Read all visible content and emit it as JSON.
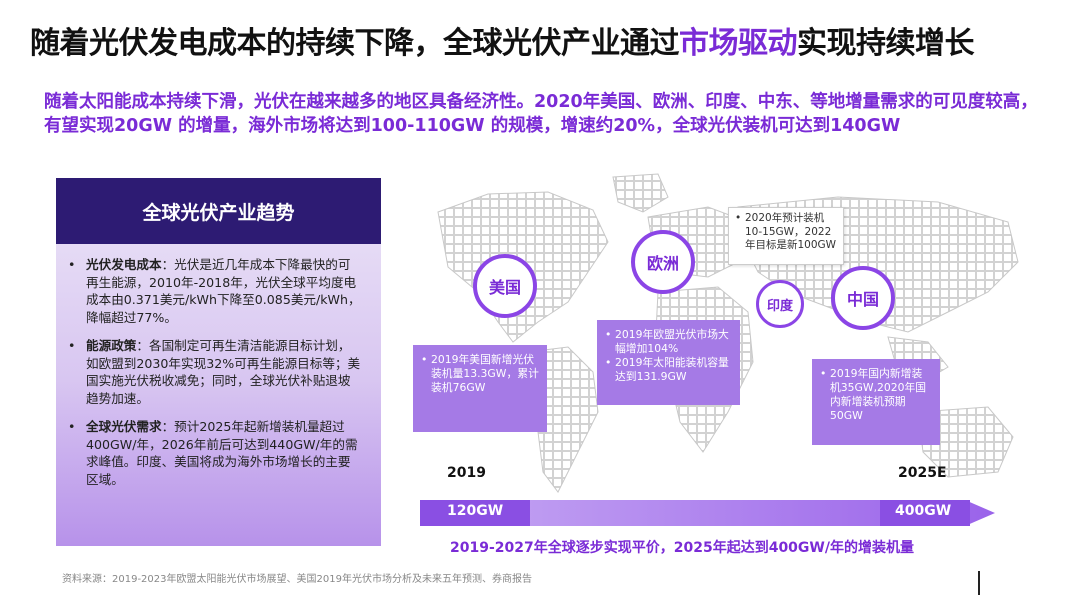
{
  "title": {
    "part1": "随着光伏发电成本的持续下降，全球光伏产业通过",
    "highlight": "市场驱动",
    "part2": "实现持续增长"
  },
  "subtitle": "随着太阳能成本持续下滑，光伏在越来越多的地区具备经济性。2020年美国、欧洲、印度、中东、等地增量需求的可见度较高，有望实现20GW 的增量，海外市场将达到100-110GW 的规模，增速约20%，全球光伏装机可达到140GW",
  "panel": {
    "heading": "全球光伏产业趋势",
    "items": [
      {
        "label": "光伏发电成本",
        "text": "：光伏是近几年成本下降最快的可再生能源，2010年-2018年，光伏全球平均度电成本由0.371美元/kWh下降至0.085美元/kWh，降幅超过77%。"
      },
      {
        "label": "能源政策",
        "text": "：各国制定可再生清洁能源目标计划，如欧盟到2030年实现32%可再生能源目标等；美国实施光伏税收减免；同时，全球光伏补贴退坡趋势加速。"
      },
      {
        "label": "全球光伏需求",
        "text": "：预计2025年起新增装机量超过400GW/年，2026年前后可达到440GW/年的需求峰值。印度、美国将成为海外市场增长的主要区域。"
      }
    ]
  },
  "regions": {
    "usa": "美国",
    "europe": "欧洲",
    "india": "印度",
    "china": "中国"
  },
  "callouts": {
    "usa": [
      "2019年美国新增光伏装机量13.3GW，累计装机76GW"
    ],
    "europe": [
      "2019年欧盟光伏市场大幅增加104%",
      "2019年太阳能装机容量达到131.9GW"
    ],
    "india": [
      "2020年预计装机10-15GW，2022年目标是新100GW"
    ],
    "china": [
      "2019年国内新增装机35GW,2020年国内新增装机预期50GW"
    ]
  },
  "timeline": {
    "start_year": "2019",
    "end_year": "2025E",
    "start_value": "120GW",
    "end_value": "400GW",
    "caption": "2019-2027年全球逐步实现平价，2025年起达到400GW/年的增装机量"
  },
  "source": "资料来源：2019-2023年欧盟太阳能光伏市场展望、美国2019年光伏市场分析及未来五年预测、券商报告",
  "colors": {
    "accent": "#7a2bd6",
    "panel_head": "#2d1b73",
    "callout": "#a57ae6"
  }
}
